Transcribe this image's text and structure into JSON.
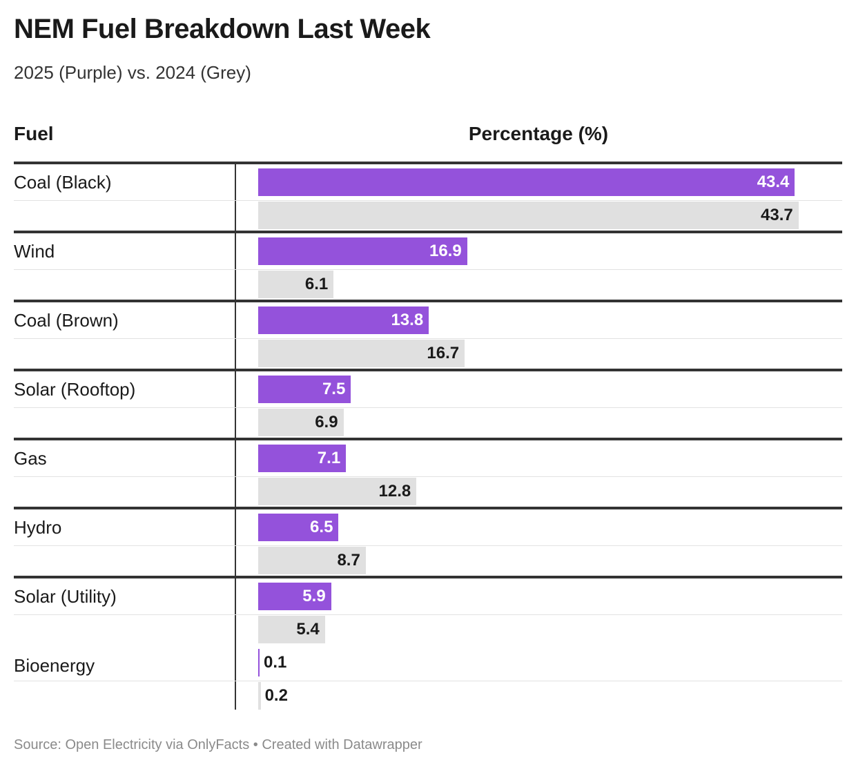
{
  "title": "NEM Fuel Breakdown Last Week",
  "subtitle": "2025 (Purple) vs. 2024 (Grey)",
  "source": "Source: Open Electricity via OnlyFacts • Created with Datawrapper",
  "colors": {
    "y2025": "#9452db",
    "y2024": "#e0e0e0"
  },
  "chart_data": {
    "type": "table",
    "columns": [
      "Fuel",
      "Percentage (%)"
    ],
    "categories": [
      "Coal (Black)",
      "Wind",
      "Coal (Brown)",
      "Solar (Rooftop)",
      "Gas",
      "Hydro",
      "Solar (Utility)",
      "Bioenergy"
    ],
    "series": [
      {
        "values": [
          43.4,
          16.9,
          13.8,
          7.5,
          7.1,
          6.5,
          5.9,
          0.1
        ],
        "color": "#9452db"
      },
      {
        "values": [
          43.7,
          6.1,
          16.7,
          6.9,
          12.8,
          8.7,
          5.4,
          0.2
        ],
        "color": "#e0e0e0"
      }
    ],
    "xlim": [
      0,
      45.5
    ]
  }
}
